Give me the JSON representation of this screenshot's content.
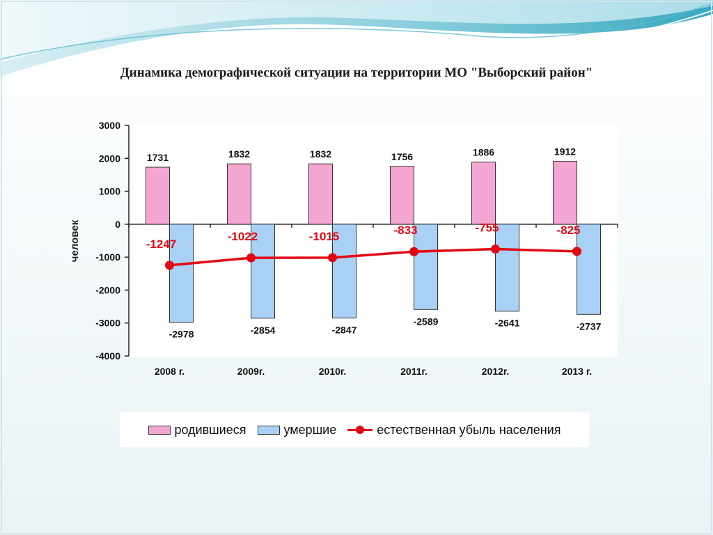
{
  "title": "Динамика демографической ситуации на территории МО \"Выборский район\"",
  "colors": {
    "born": "#f4a6d2",
    "died": "#a9d0f5",
    "natural_loss": "#e30613",
    "wave_dark": "#4fb6c8",
    "wave_light": "#bfe6ef"
  },
  "legend": {
    "born": "родившиеся",
    "died": "умершие",
    "natural_loss": "естественная убыль населения"
  },
  "chart_data": {
    "type": "bar",
    "categories": [
      "2008 г.",
      "2009г.",
      "2010г.",
      "2011г.",
      "2012г.",
      "2013 г."
    ],
    "ylabel": "человек",
    "ylim": [
      -4000,
      3000
    ],
    "yticks": [
      3000,
      2000,
      1000,
      0,
      -1000,
      -2000,
      -3000,
      -4000
    ],
    "grid": false,
    "legend_position": "bottom",
    "series": [
      {
        "name": "родившиеся",
        "type": "bar",
        "values": [
          1731,
          1832,
          1832,
          1756,
          1886,
          1912
        ]
      },
      {
        "name": "умершие",
        "type": "bar",
        "values": [
          -2978,
          -2854,
          -2847,
          -2589,
          -2641,
          -2737
        ]
      },
      {
        "name": "естественная убыль населения",
        "type": "line",
        "values": [
          -1247,
          -1022,
          -1015,
          -833,
          -755,
          -825
        ]
      }
    ]
  }
}
